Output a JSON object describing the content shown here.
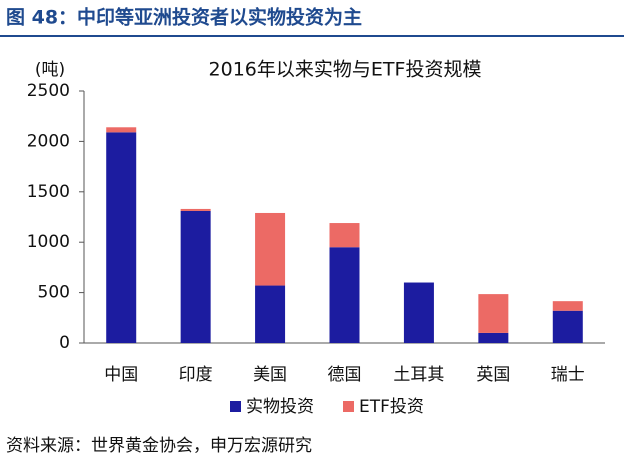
{
  "chart_data": {
    "type": "stacked_bar",
    "header": "图 48：中印等亚洲投资者以实物投资为主",
    "title": "2016年以来实物与ETF投资规模",
    "y_unit": "(吨)",
    "source": "资料来源：世界黄金协会，申万宏源研究",
    "categories": [
      "中国",
      "印度",
      "美国",
      "德国",
      "土耳其",
      "英国",
      "瑞士"
    ],
    "series": [
      {
        "name": "实物投资",
        "color": "#1c1ca0",
        "values": [
          2090,
          1310,
          570,
          950,
          600,
          100,
          320
        ]
      },
      {
        "name": "ETF投资",
        "color": "#ec6a65",
        "values": [
          50,
          20,
          720,
          240,
          0,
          385,
          95
        ]
      }
    ],
    "ylim": [
      0,
      2500
    ],
    "yticks": [
      0,
      500,
      1000,
      1500,
      2000,
      2500
    ],
    "grid": false
  }
}
